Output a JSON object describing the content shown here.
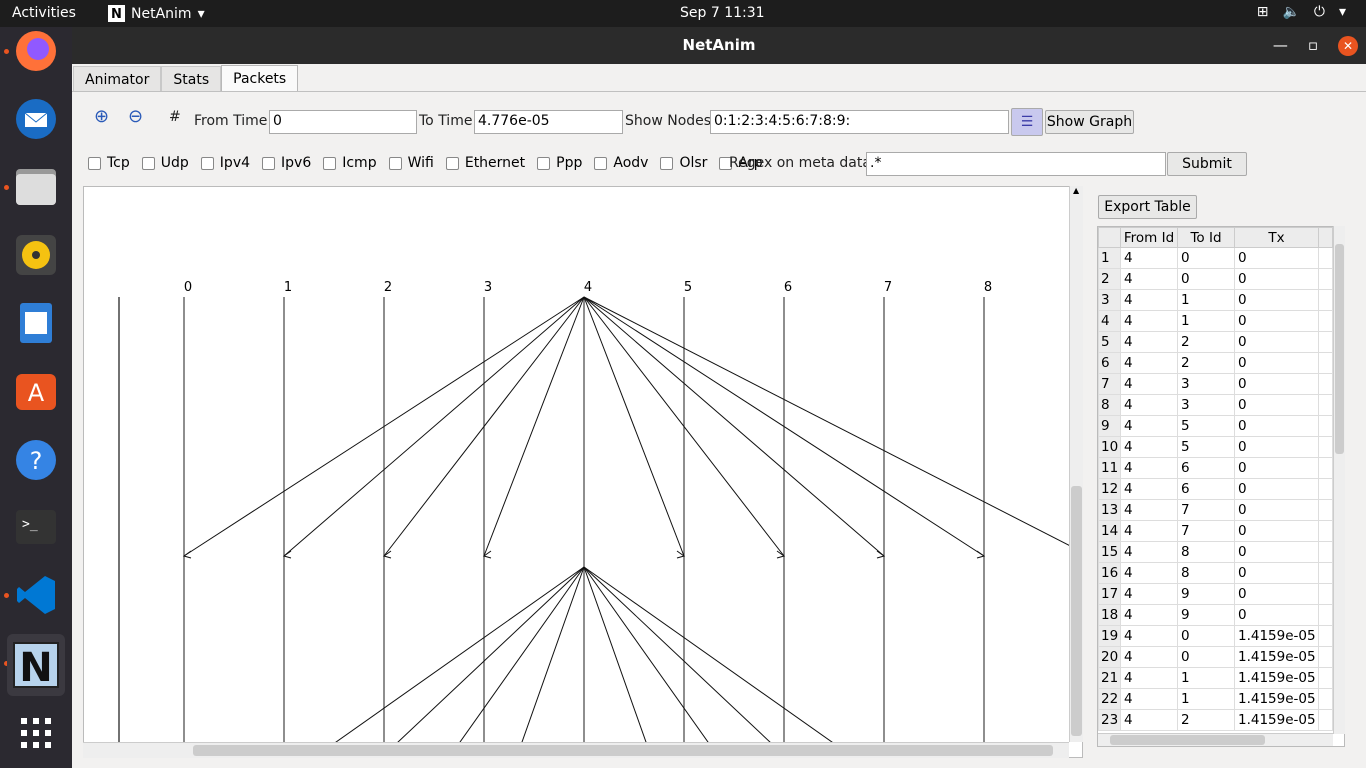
{
  "topbar": {
    "activities": "Activities",
    "app": "NetAnim",
    "clock": "Sep 7  11:31"
  },
  "window": {
    "title": "NetAnim"
  },
  "tabs": [
    {
      "label": "Animator"
    },
    {
      "label": "Stats"
    },
    {
      "label": "Packets"
    }
  ],
  "toolbar": {
    "from_label": "From Time",
    "from_value": "0",
    "to_label": "To Time",
    "to_value": "4.776e-05",
    "nodes_label": "Show Nodes",
    "nodes_value": "0:1:2:3:4:5:6:7:8:9:",
    "show_graph": "Show Graph"
  },
  "filters": [
    "Tcp",
    "Udp",
    "Ipv4",
    "Ipv6",
    "Icmp",
    "Wifi",
    "Ethernet",
    "Ppp",
    "Aodv",
    "Olsr",
    "Arp"
  ],
  "regex": {
    "label": "Regex on meta data",
    "value": ".*",
    "submit": "Submit"
  },
  "graph": {
    "node_labels": [
      "0",
      "1",
      "2",
      "3",
      "4",
      "5",
      "6",
      "7",
      "8"
    ]
  },
  "table": {
    "export": "Export Table",
    "columns": [
      "From Id",
      "To Id",
      "Tx"
    ],
    "rows": [
      [
        "1",
        "4",
        "0",
        "0"
      ],
      [
        "2",
        "4",
        "0",
        "0"
      ],
      [
        "3",
        "4",
        "1",
        "0"
      ],
      [
        "4",
        "4",
        "1",
        "0"
      ],
      [
        "5",
        "4",
        "2",
        "0"
      ],
      [
        "6",
        "4",
        "2",
        "0"
      ],
      [
        "7",
        "4",
        "3",
        "0"
      ],
      [
        "8",
        "4",
        "3",
        "0"
      ],
      [
        "9",
        "4",
        "5",
        "0"
      ],
      [
        "10",
        "4",
        "5",
        "0"
      ],
      [
        "11",
        "4",
        "6",
        "0"
      ],
      [
        "12",
        "4",
        "6",
        "0"
      ],
      [
        "13",
        "4",
        "7",
        "0"
      ],
      [
        "14",
        "4",
        "7",
        "0"
      ],
      [
        "15",
        "4",
        "8",
        "0"
      ],
      [
        "16",
        "4",
        "8",
        "0"
      ],
      [
        "17",
        "4",
        "9",
        "0"
      ],
      [
        "18",
        "4",
        "9",
        "0"
      ],
      [
        "19",
        "4",
        "0",
        "1.4159e-05"
      ],
      [
        "20",
        "4",
        "0",
        "1.4159e-05"
      ],
      [
        "21",
        "4",
        "1",
        "1.4159e-05"
      ],
      [
        "22",
        "4",
        "1",
        "1.4159e-05"
      ],
      [
        "23",
        "4",
        "2",
        "1.4159e-05"
      ]
    ]
  }
}
